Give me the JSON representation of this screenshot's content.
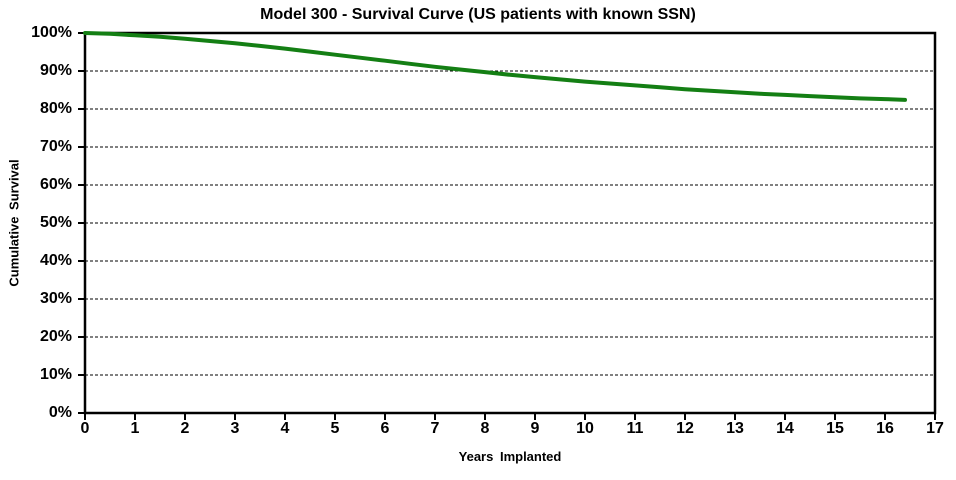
{
  "chart_data": {
    "type": "line",
    "title": "Model 300 - Survival Curve (US patients with known SSN)",
    "xlabel": "Years Implanted",
    "ylabel": "Cumulative Survival",
    "xlim": [
      0,
      17
    ],
    "ylim": [
      0,
      100
    ],
    "grid": "horizontal-dashed-black",
    "legend": "none",
    "axis_color": "#000000",
    "background": "#ffffff",
    "x_ticks": [
      {
        "v": 0,
        "label": "0"
      },
      {
        "v": 1,
        "label": "1"
      },
      {
        "v": 2,
        "label": "2"
      },
      {
        "v": 3,
        "label": "3"
      },
      {
        "v": 4,
        "label": "4"
      },
      {
        "v": 5,
        "label": "5"
      },
      {
        "v": 6,
        "label": "6"
      },
      {
        "v": 7,
        "label": "7"
      },
      {
        "v": 8,
        "label": "8"
      },
      {
        "v": 9,
        "label": "9"
      },
      {
        "v": 10,
        "label": "10"
      },
      {
        "v": 11,
        "label": "11"
      },
      {
        "v": 12,
        "label": "12"
      },
      {
        "v": 13,
        "label": "13"
      },
      {
        "v": 14,
        "label": "14"
      },
      {
        "v": 15,
        "label": "15"
      },
      {
        "v": 16,
        "label": "16"
      },
      {
        "v": 17,
        "label": "17"
      }
    ],
    "y_ticks": [
      {
        "v": 0,
        "label": "0%"
      },
      {
        "v": 10,
        "label": "10%"
      },
      {
        "v": 20,
        "label": "20%"
      },
      {
        "v": 30,
        "label": "30%"
      },
      {
        "v": 40,
        "label": "40%"
      },
      {
        "v": 50,
        "label": "50%"
      },
      {
        "v": 60,
        "label": "60%"
      },
      {
        "v": 70,
        "label": "70%"
      },
      {
        "v": 80,
        "label": "80%"
      },
      {
        "v": 90,
        "label": "90%"
      },
      {
        "v": 100,
        "label": "100%"
      }
    ],
    "series": [
      {
        "color": "#147F14",
        "points": [
          [
            0,
            100.0
          ],
          [
            0.5,
            99.8
          ],
          [
            1,
            99.4
          ],
          [
            1.5,
            99.0
          ],
          [
            2,
            98.5
          ],
          [
            2.5,
            97.9
          ],
          [
            3,
            97.3
          ],
          [
            3.5,
            96.6
          ],
          [
            4,
            95.9
          ],
          [
            4.5,
            95.1
          ],
          [
            5,
            94.3
          ],
          [
            5.5,
            93.5
          ],
          [
            6,
            92.7
          ],
          [
            6.5,
            91.9
          ],
          [
            7,
            91.1
          ],
          [
            7.5,
            90.4
          ],
          [
            8,
            89.7
          ],
          [
            8.5,
            89.0
          ],
          [
            9,
            88.4
          ],
          [
            9.5,
            87.8
          ],
          [
            10,
            87.2
          ],
          [
            10.5,
            86.7
          ],
          [
            11,
            86.2
          ],
          [
            11.5,
            85.7
          ],
          [
            12,
            85.2
          ],
          [
            12.5,
            84.8
          ],
          [
            13,
            84.4
          ],
          [
            13.5,
            84.0
          ],
          [
            14,
            83.7
          ],
          [
            14.5,
            83.4
          ],
          [
            15,
            83.1
          ],
          [
            15.5,
            82.8
          ],
          [
            16,
            82.6
          ],
          [
            16.4,
            82.4
          ]
        ]
      }
    ]
  }
}
